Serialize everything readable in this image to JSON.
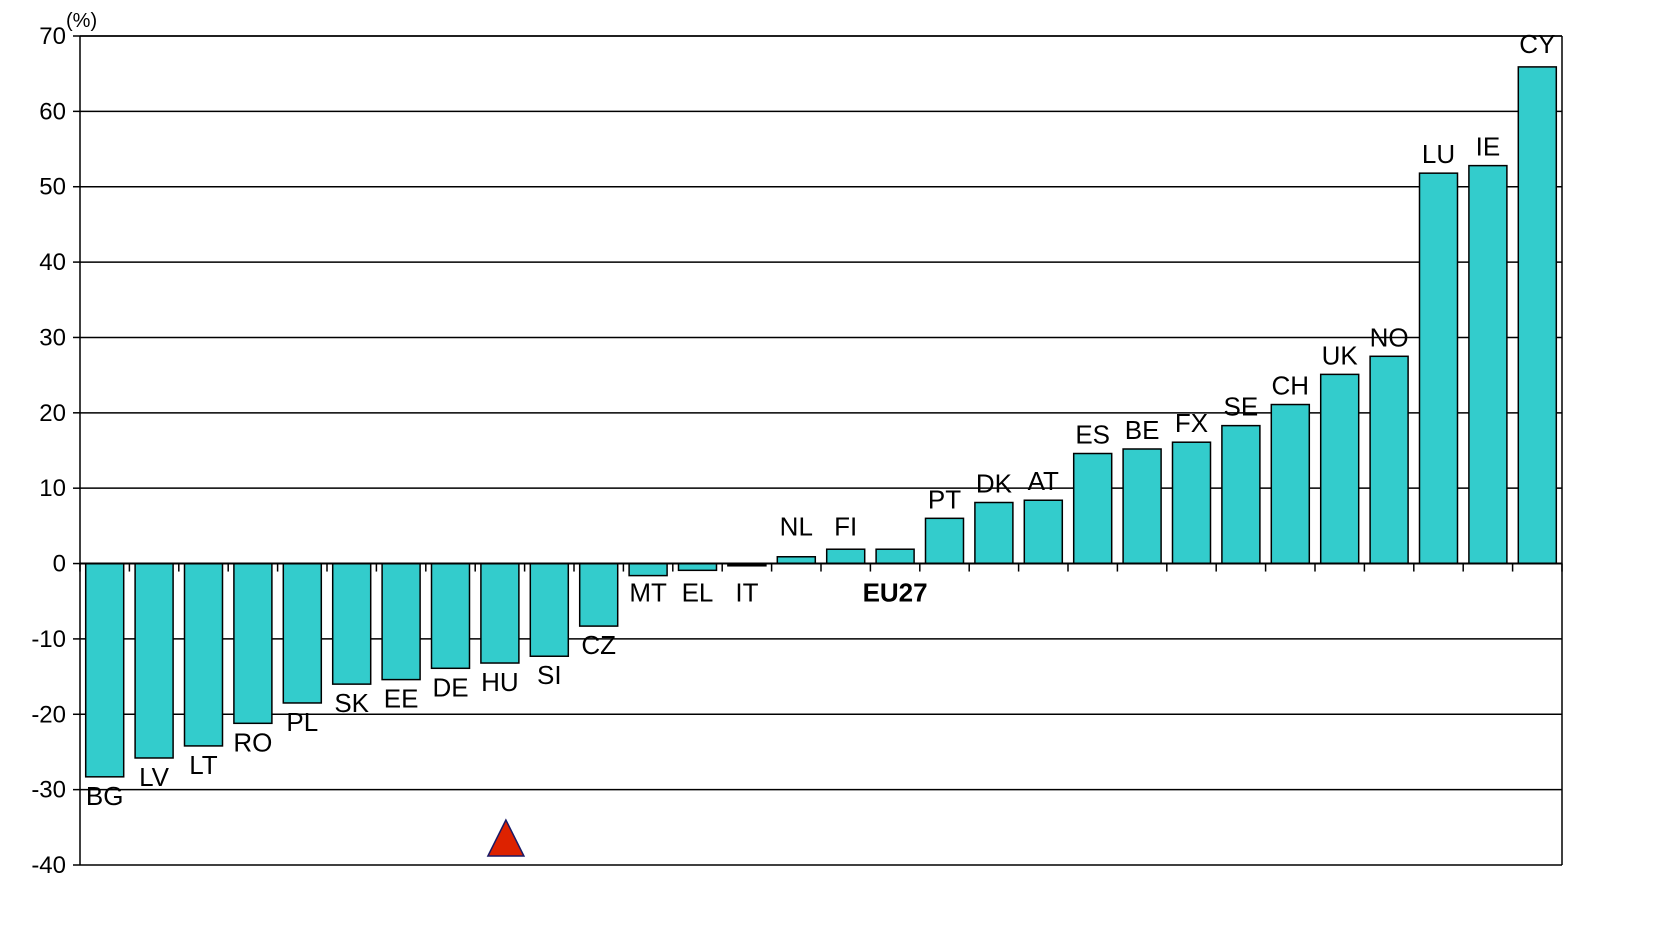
{
  "chart_data": {
    "type": "bar",
    "unit_label": "(%)",
    "categories": [
      "BG",
      "LV",
      "LT",
      "RO",
      "PL",
      "SK",
      "EE",
      "DE",
      "HU",
      "SI",
      "CZ",
      "MT",
      "EL",
      "IT",
      "NL",
      "FI",
      "EU27",
      "PT",
      "DK",
      "AT",
      "ES",
      "BE",
      "FX",
      "SE",
      "CH",
      "UK",
      "NO",
      "LU",
      "IE",
      "CY"
    ],
    "values": [
      -28.3,
      -25.8,
      -24.2,
      -21.2,
      -18.5,
      -16,
      -15.4,
      -13.9,
      -13.2,
      -12.3,
      -8.3,
      -1.6,
      -0.9,
      -0.3,
      0.9,
      1.9,
      1.9,
      6,
      8.1,
      8.4,
      14.6,
      15.2,
      16.1,
      18.3,
      21.1,
      25.1,
      27.5,
      51.8,
      52.8,
      65.9
    ],
    "highlight_categories": [
      "EU27"
    ],
    "bar_color": "#33CCCC",
    "marker_color": "#DD2200",
    "ylim": [
      -40,
      70
    ],
    "yticks": [
      "70",
      "60",
      "50",
      "40",
      "30",
      "20",
      "10",
      "0",
      "-10",
      "-20",
      "-30",
      "-40"
    ],
    "grid": true,
    "legend": "none",
    "marker": {
      "type": "triangle-up",
      "category": "HU"
    }
  }
}
